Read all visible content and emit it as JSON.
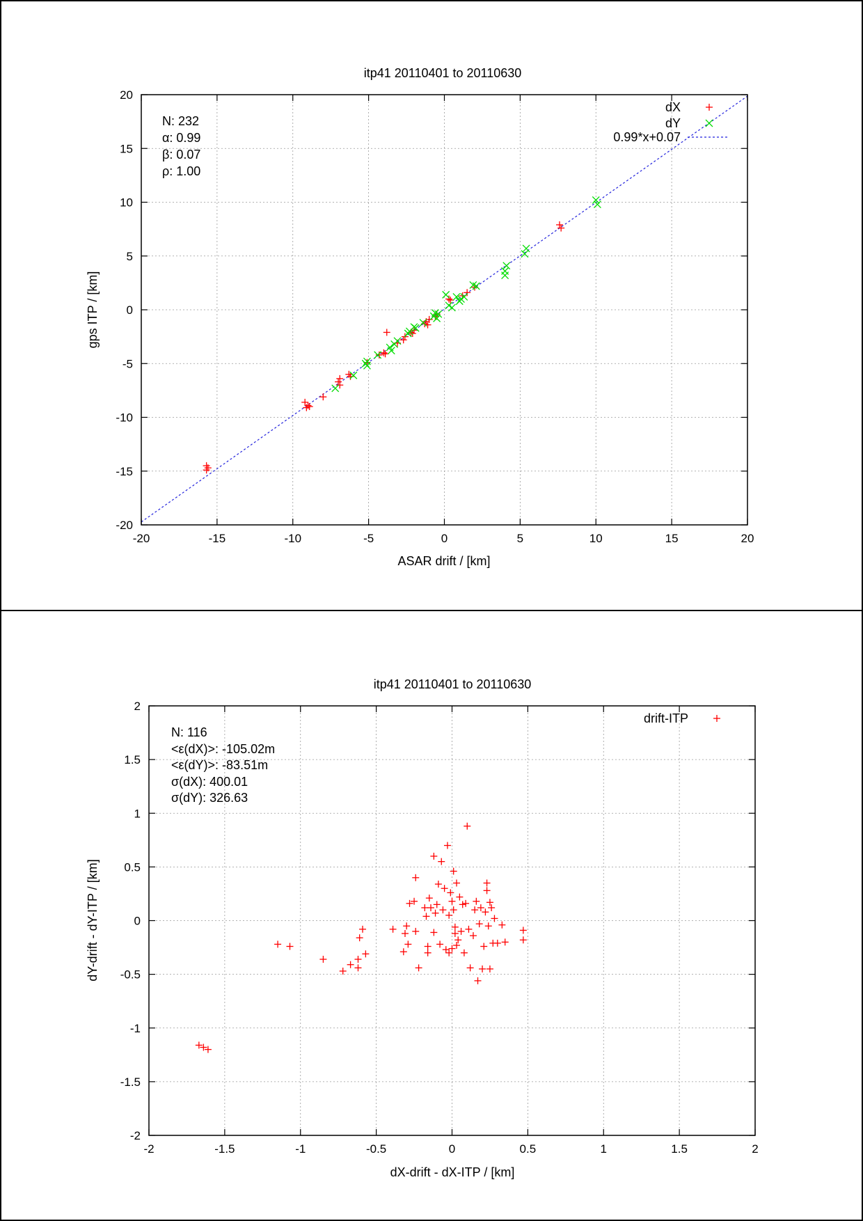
{
  "chart_data": [
    {
      "type": "scatter",
      "title": "itp41 20110401 to 20110630",
      "xlabel": "ASAR drift / [km]",
      "ylabel": "gps ITP / [km]",
      "xlim": [
        -20,
        20
      ],
      "ylim": [
        -20,
        20
      ],
      "xticks": [
        -20,
        -15,
        -10,
        -5,
        0,
        5,
        10,
        15,
        20
      ],
      "yticks": [
        -20,
        -15,
        -10,
        -5,
        0,
        5,
        10,
        15,
        20
      ],
      "grid": true,
      "legend_position": "top-right",
      "stats": [
        "N: 232",
        "α: 0.99",
        "β: 0.07",
        "ρ: 1.00"
      ],
      "series": [
        {
          "name": "dX",
          "marker": "plus",
          "color": "#ff0000",
          "points": [
            [
              -15.7,
              -14.5
            ],
            [
              -15.7,
              -14.9
            ],
            [
              -15.6,
              -14.7
            ],
            [
              -9.2,
              -8.6
            ],
            [
              -9.1,
              -9.1
            ],
            [
              -9.0,
              -8.9
            ],
            [
              -8.9,
              -9.0
            ],
            [
              -8.0,
              -8.1
            ],
            [
              -7.0,
              -6.7
            ],
            [
              -6.9,
              -6.4
            ],
            [
              -6.9,
              -7.0
            ],
            [
              -6.3,
              -6.0
            ],
            [
              -6.2,
              -6.2
            ],
            [
              -5.1,
              -4.9
            ],
            [
              -4.3,
              -4.2
            ],
            [
              -4.0,
              -4.0
            ],
            [
              -3.9,
              -4.1
            ],
            [
              -3.8,
              -2.1
            ],
            [
              -3.1,
              -3.1
            ],
            [
              -2.7,
              -2.8
            ],
            [
              -2.6,
              -2.5
            ],
            [
              -2.2,
              -2.1
            ],
            [
              -2.1,
              -2.2
            ],
            [
              -2.0,
              -1.9
            ],
            [
              -1.3,
              -1.3
            ],
            [
              -1.2,
              -1.1
            ],
            [
              -1.1,
              -1.4
            ],
            [
              -1.0,
              -0.9
            ],
            [
              -0.6,
              -0.6
            ],
            [
              -0.5,
              -0.4
            ],
            [
              0.3,
              1.0
            ],
            [
              0.4,
              0.9
            ],
            [
              1.2,
              1.3
            ],
            [
              1.5,
              1.6
            ],
            [
              2.0,
              2.1
            ],
            [
              7.6,
              7.9
            ],
            [
              7.7,
              7.6
            ]
          ]
        },
        {
          "name": "dY",
          "marker": "cross",
          "color": "#00dd00",
          "points": [
            [
              -7.2,
              -7.3
            ],
            [
              -6.0,
              -6.1
            ],
            [
              -5.2,
              -5.0
            ],
            [
              -5.1,
              -4.8
            ],
            [
              -5.1,
              -5.2
            ],
            [
              -4.4,
              -4.2
            ],
            [
              -3.6,
              -3.5
            ],
            [
              -3.5,
              -3.8
            ],
            [
              -3.3,
              -3.2
            ],
            [
              -3.1,
              -2.9
            ],
            [
              -2.4,
              -2.2
            ],
            [
              -2.3,
              -2.0
            ],
            [
              -2.0,
              -1.6
            ],
            [
              -1.9,
              -1.7
            ],
            [
              -1.4,
              -1.2
            ],
            [
              -0.7,
              -0.6
            ],
            [
              -0.6,
              -0.3
            ],
            [
              -0.5,
              -0.8
            ],
            [
              -0.4,
              -0.4
            ],
            [
              0.1,
              1.4
            ],
            [
              0.3,
              0.4
            ],
            [
              0.5,
              0.2
            ],
            [
              0.8,
              1.2
            ],
            [
              1.0,
              0.8
            ],
            [
              1.1,
              1.0
            ],
            [
              1.3,
              1.2
            ],
            [
              1.9,
              2.3
            ],
            [
              2.1,
              2.2
            ],
            [
              4.0,
              3.6
            ],
            [
              4.0,
              3.2
            ],
            [
              4.1,
              4.1
            ],
            [
              5.3,
              5.2
            ],
            [
              5.4,
              5.7
            ],
            [
              10.0,
              10.2
            ],
            [
              10.1,
              9.8
            ]
          ]
        },
        {
          "name": "0.99*x+0.07",
          "type": "line",
          "style": "dashed",
          "color": "#2222dd",
          "slope": 0.99,
          "intercept": 0.07
        }
      ]
    },
    {
      "type": "scatter",
      "title": "itp41 20110401 to 20110630",
      "xlabel": "dX-drift - dX-ITP / [km]",
      "ylabel": "dY-drift - dY-ITP / [km]",
      "xlim": [
        -2,
        2
      ],
      "ylim": [
        -2,
        2
      ],
      "xticks": [
        "-2",
        "-1.5",
        "-1",
        "-0.5",
        "0",
        "0.5",
        "1",
        "1.5",
        "2"
      ],
      "yticks": [
        "-2",
        "-1.5",
        "-1",
        "-0.5",
        "0",
        "0.5",
        "1",
        "1.5",
        "2"
      ],
      "grid": true,
      "legend_position": "top-right",
      "stats": [
        "N: 116",
        "<ε(dX)>:  -105.02m",
        "<ε(dY)>: -83.51m",
        "σ(dX):  400.01",
        "σ(dY):  326.63"
      ],
      "series": [
        {
          "name": "drift-ITP",
          "marker": "plus",
          "color": "#ff0000",
          "points": [
            [
              -1.67,
              -1.16
            ],
            [
              -1.64,
              -1.18
            ],
            [
              -1.61,
              -1.2
            ],
            [
              -1.15,
              -0.22
            ],
            [
              -1.07,
              -0.24
            ],
            [
              -0.85,
              -0.36
            ],
            [
              -0.72,
              -0.47
            ],
            [
              -0.67,
              -0.41
            ],
            [
              -0.62,
              -0.44
            ],
            [
              -0.62,
              -0.36
            ],
            [
              -0.61,
              -0.16
            ],
            [
              -0.59,
              -0.08
            ],
            [
              -0.57,
              -0.31
            ],
            [
              -0.39,
              -0.08
            ],
            [
              -0.32,
              -0.29
            ],
            [
              -0.31,
              -0.12
            ],
            [
              -0.3,
              -0.05
            ],
            [
              -0.29,
              -0.22
            ],
            [
              -0.28,
              0.16
            ],
            [
              -0.25,
              0.18
            ],
            [
              -0.24,
              0.4
            ],
            [
              -0.24,
              -0.1
            ],
            [
              -0.22,
              -0.44
            ],
            [
              -0.18,
              0.12
            ],
            [
              -0.17,
              0.04
            ],
            [
              -0.16,
              -0.24
            ],
            [
              -0.16,
              -0.3
            ],
            [
              -0.15,
              0.21
            ],
            [
              -0.14,
              0.12
            ],
            [
              -0.12,
              0.6
            ],
            [
              -0.12,
              -0.11
            ],
            [
              -0.11,
              0.07
            ],
            [
              -0.1,
              0.15
            ],
            [
              -0.09,
              0.34
            ],
            [
              -0.08,
              -0.22
            ],
            [
              -0.07,
              0.55
            ],
            [
              -0.06,
              0.1
            ],
            [
              -0.05,
              0.3
            ],
            [
              -0.04,
              -0.27
            ],
            [
              -0.03,
              0.7
            ],
            [
              -0.02,
              0.05
            ],
            [
              -0.02,
              -0.3
            ],
            [
              -0.01,
              0.26
            ],
            [
              0.0,
              0.18
            ],
            [
              0.0,
              -0.26
            ],
            [
              0.01,
              0.46
            ],
            [
              0.01,
              0.1
            ],
            [
              0.02,
              -0.12
            ],
            [
              0.02,
              -0.06
            ],
            [
              0.03,
              0.35
            ],
            [
              0.03,
              -0.23
            ],
            [
              0.04,
              -0.18
            ],
            [
              0.05,
              0.22
            ],
            [
              0.06,
              -0.1
            ],
            [
              0.07,
              0.15
            ],
            [
              0.08,
              -0.3
            ],
            [
              0.09,
              0.16
            ],
            [
              0.1,
              0.88
            ],
            [
              0.11,
              -0.08
            ],
            [
              0.12,
              -0.44
            ],
            [
              0.14,
              -0.14
            ],
            [
              0.15,
              0.1
            ],
            [
              0.16,
              0.18
            ],
            [
              0.17,
              -0.56
            ],
            [
              0.18,
              -0.03
            ],
            [
              0.19,
              0.12
            ],
            [
              0.2,
              -0.45
            ],
            [
              0.21,
              -0.24
            ],
            [
              0.22,
              0.08
            ],
            [
              0.23,
              0.35
            ],
            [
              0.23,
              0.28
            ],
            [
              0.24,
              -0.05
            ],
            [
              0.25,
              0.17
            ],
            [
              0.25,
              -0.45
            ],
            [
              0.26,
              0.12
            ],
            [
              0.27,
              -0.21
            ],
            [
              0.28,
              0.02
            ],
            [
              0.3,
              -0.21
            ],
            [
              0.33,
              -0.04
            ],
            [
              0.35,
              -0.2
            ],
            [
              0.47,
              -0.09
            ],
            [
              0.47,
              -0.18
            ]
          ]
        }
      ]
    }
  ]
}
